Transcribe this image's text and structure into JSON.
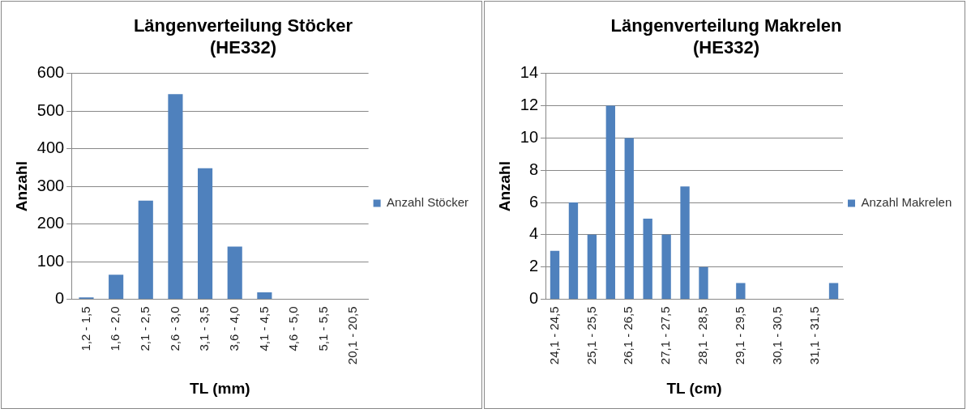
{
  "chart_data": [
    {
      "type": "bar",
      "title": "Längenverteilung Stöcker (HE332)",
      "xlabel": "TL (mm)",
      "ylabel": "Anzahl",
      "categories": [
        "1,2 - 1,5",
        "1,6 - 2,0",
        "2,1 - 2,5",
        "2,6 - 3,0",
        "3,1 - 3,5",
        "3,6 - 4,0",
        "4,1 - 4,5",
        "4,6 - 5,0",
        "5,1 - 5,5",
        "20,1 - 20,5"
      ],
      "series": [
        {
          "name": "Anzahl Stöcker",
          "color": "#4f81bd",
          "values": [
            5,
            65,
            262,
            545,
            348,
            140,
            18,
            0,
            0,
            0
          ]
        }
      ],
      "ylim": [
        0,
        600
      ],
      "yticks": [
        0,
        100,
        200,
        300,
        400,
        500,
        600
      ],
      "grid": "y",
      "legend": "right"
    },
    {
      "type": "bar",
      "title": "Längenverteilung Makrelen (HE332)",
      "xlabel": "TL (cm)",
      "ylabel": "Anzahl",
      "categories": [
        "24,1 - 24,5",
        null,
        "25,1 - 25,5",
        null,
        "26,1 - 26,5",
        null,
        "27,1 - 27,5",
        null,
        "28,1 - 28,5",
        null,
        "29,1 - 29,5",
        null,
        "30,1 - 30,5",
        null,
        "31,1 - 31,5",
        null
      ],
      "series": [
        {
          "name": "Anzahl Makrelen",
          "color": "#4f81bd",
          "values": [
            3,
            6,
            4,
            12,
            10,
            5,
            4,
            7,
            2,
            0,
            1,
            0,
            0,
            0,
            0,
            1
          ]
        }
      ],
      "ylim": [
        0,
        14
      ],
      "yticks": [
        0,
        2,
        4,
        6,
        8,
        10,
        12,
        14
      ],
      "grid": "y",
      "legend": "right"
    }
  ]
}
